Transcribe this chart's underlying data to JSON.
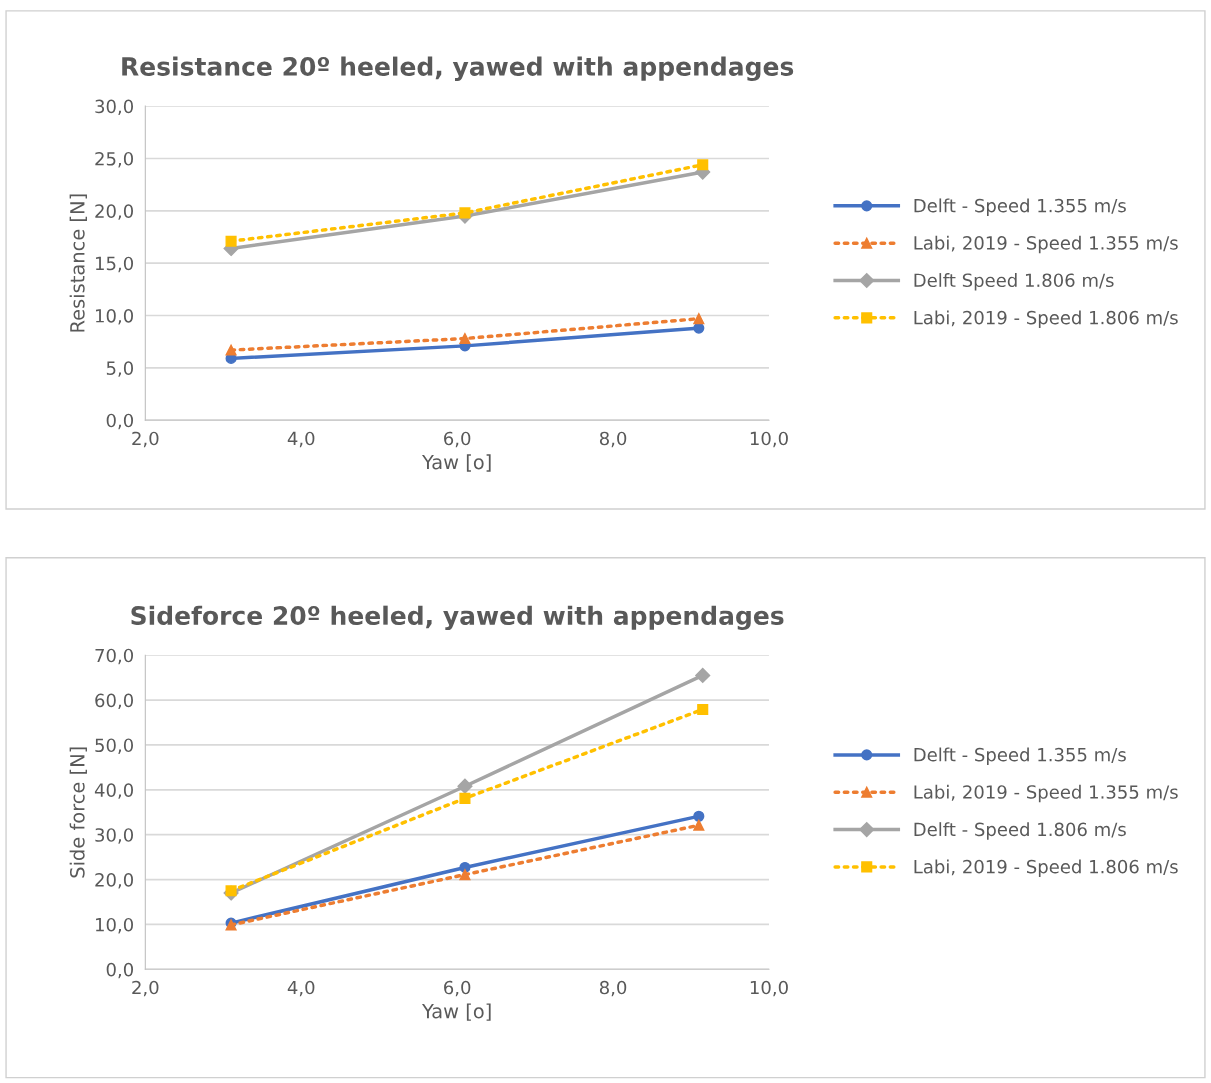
{
  "chart_data": [
    {
      "type": "line",
      "title": "Resistance 20º heeled, yawed with appendages",
      "xlabel": "Yaw [o]",
      "ylabel": "Resistance [N]",
      "xlim": [
        2,
        10
      ],
      "xticks": [
        {
          "value": 2,
          "label": "2,0"
        },
        {
          "value": 4,
          "label": "4,0"
        },
        {
          "value": 6,
          "label": "6,0"
        },
        {
          "value": 8,
          "label": "8,0"
        },
        {
          "value": 10,
          "label": "10,0"
        }
      ],
      "ylim": [
        0,
        30
      ],
      "yticks": [
        {
          "value": 0,
          "label": "0,0"
        },
        {
          "value": 5,
          "label": "5,0"
        },
        {
          "value": 10,
          "label": "10,0"
        },
        {
          "value": 15,
          "label": "15,0"
        },
        {
          "value": 20,
          "label": "20,0"
        },
        {
          "value": 25,
          "label": "25,0"
        },
        {
          "value": 30,
          "label": "30,0"
        }
      ],
      "grid": "y",
      "legend": "right",
      "series": [
        {
          "name": "Delft - Speed 1.355 m/s",
          "color": "#4472c4",
          "marker": "circle",
          "line_style": "solid",
          "x": [
            3.1,
            6.1,
            9.1
          ],
          "values": [
            5.9,
            7.1,
            8.8
          ]
        },
        {
          "name": "Labi, 2019 - Speed 1.355 m/s",
          "color": "#ed7d31",
          "marker": "triangle",
          "line_style": "dotted",
          "x": [
            3.1,
            6.1,
            9.1
          ],
          "values": [
            6.7,
            7.8,
            9.7
          ]
        },
        {
          "name": "Delft Speed 1.806 m/s",
          "color": "#a5a5a5",
          "marker": "diamond",
          "line_style": "solid",
          "x": [
            3.1,
            6.1,
            9.15
          ],
          "values": [
            16.4,
            19.5,
            23.7
          ]
        },
        {
          "name": "Labi, 2019 - Speed 1.806 m/s",
          "color": "#ffc000",
          "marker": "square",
          "line_style": "dotted",
          "x": [
            3.1,
            6.1,
            9.15
          ],
          "values": [
            17.1,
            19.8,
            24.4
          ]
        }
      ]
    },
    {
      "type": "line",
      "title": "Sideforce 20º heeled, yawed with appendages",
      "xlabel": "Yaw [o]",
      "ylabel": "Side force [N]",
      "xlim": [
        2,
        10
      ],
      "xticks": [
        {
          "value": 2,
          "label": "2,0"
        },
        {
          "value": 4,
          "label": "4,0"
        },
        {
          "value": 6,
          "label": "6,0"
        },
        {
          "value": 8,
          "label": "8,0"
        },
        {
          "value": 10,
          "label": "10,0"
        }
      ],
      "ylim": [
        0,
        70
      ],
      "yticks": [
        {
          "value": 0,
          "label": "0,0"
        },
        {
          "value": 10,
          "label": "10,0"
        },
        {
          "value": 20,
          "label": "20,0"
        },
        {
          "value": 30,
          "label": "30,0"
        },
        {
          "value": 40,
          "label": "40,0"
        },
        {
          "value": 50,
          "label": "50,0"
        },
        {
          "value": 60,
          "label": "60,0"
        },
        {
          "value": 70,
          "label": "70,0"
        }
      ],
      "grid": "y",
      "legend": "right",
      "series": [
        {
          "name": "Delft - Speed 1.355 m/s",
          "color": "#4472c4",
          "marker": "circle",
          "line_style": "solid",
          "x": [
            3.1,
            6.1,
            9.1
          ],
          "values": [
            10.3,
            22.7,
            34.1
          ]
        },
        {
          "name": "Labi, 2019 - Speed 1.355 m/s",
          "color": "#ed7d31",
          "marker": "triangle",
          "line_style": "dotted",
          "x": [
            3.1,
            6.1,
            9.1
          ],
          "values": [
            9.9,
            21.1,
            32.1
          ]
        },
        {
          "name": "Delft - Speed 1.806 m/s",
          "color": "#a5a5a5",
          "marker": "diamond",
          "line_style": "solid",
          "x": [
            3.1,
            6.1,
            9.15
          ],
          "values": [
            17.0,
            40.8,
            65.5
          ]
        },
        {
          "name": "Labi, 2019 - Speed 1.806 m/s",
          "color": "#ffc000",
          "marker": "square",
          "line_style": "dotted",
          "x": [
            3.1,
            6.1,
            9.15
          ],
          "values": [
            17.5,
            38.1,
            57.9
          ]
        }
      ]
    }
  ]
}
